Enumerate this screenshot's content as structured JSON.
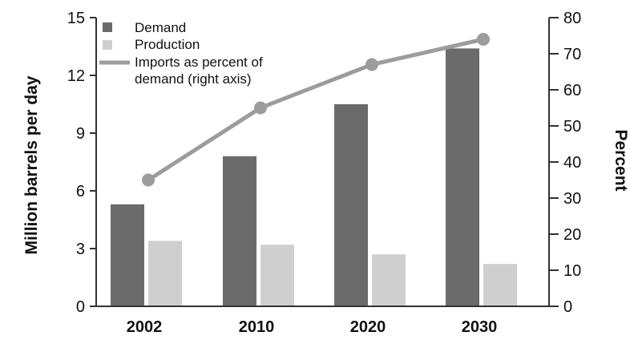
{
  "chart_data": {
    "type": "bar",
    "categories": [
      "2002",
      "2010",
      "2020",
      "2030"
    ],
    "series": [
      {
        "name": "Demand",
        "type": "bar",
        "axis": "left",
        "values": [
          5.3,
          7.8,
          10.5,
          13.4
        ]
      },
      {
        "name": "Production",
        "type": "bar",
        "axis": "left",
        "values": [
          3.4,
          3.2,
          2.7,
          2.2
        ]
      },
      {
        "name": "Imports as percent of demand (right axis)",
        "type": "line",
        "axis": "right",
        "values": [
          35,
          55,
          67,
          74
        ]
      }
    ],
    "legend_lines": {
      "demand": "Demand",
      "production": "Production",
      "imports_line1": "Imports as percent of",
      "imports_line2": "demand (right axis)"
    },
    "ylabel": "Million barrels per day",
    "y2label": "Percent",
    "ylim": [
      0,
      15
    ],
    "yticks": [
      "0",
      "3",
      "6",
      "9",
      "12",
      "15"
    ],
    "y2lim": [
      0,
      80
    ],
    "y2ticks": [
      "0",
      "10",
      "20",
      "30",
      "40",
      "50",
      "60",
      "70",
      "80"
    ],
    "grid": false,
    "legend_position": "top-left",
    "colors": {
      "demand": "#6b6b6b",
      "production": "#cfcfcf",
      "imports": "#9c9c9c",
      "axis": "#333333"
    }
  }
}
